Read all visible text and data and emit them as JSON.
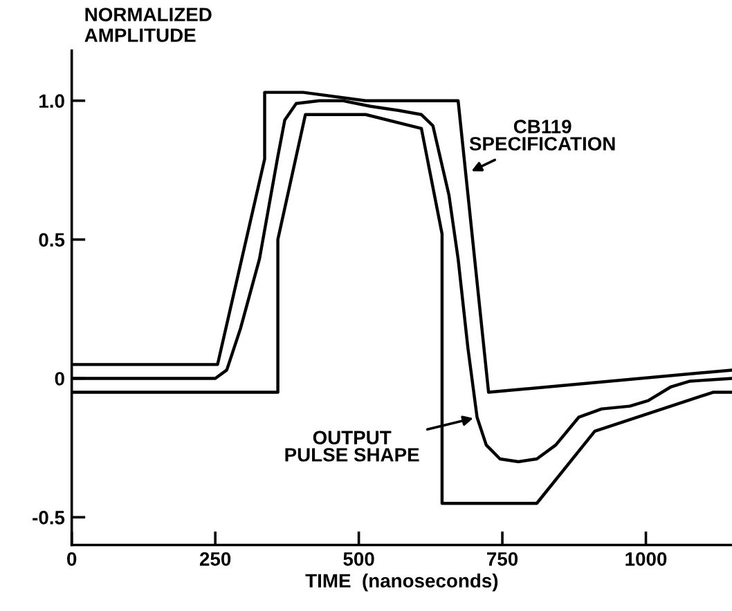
{
  "chart_data": {
    "type": "line",
    "ylabel": "NORMALIZED\nAMPLITUDE",
    "xlabel": "TIME  (nanoseconds)",
    "xlim": [
      0,
      1150
    ],
    "ylim": [
      -0.6,
      1.18
    ],
    "xticks": [
      0,
      250,
      500,
      750,
      1000
    ],
    "yticks": [
      {
        "value": 1.0,
        "label": "1.0"
      },
      0.5,
      0,
      -0.5
    ],
    "grid": false,
    "legend": false,
    "marker": "none",
    "line_style": "solid",
    "series": [
      {
        "color": "#000000",
        "x": [
          0,
          254,
          336,
          336,
          403,
          512,
          673,
          726,
          1150
        ],
        "values": [
          0.05,
          0.05,
          0.79,
          1.03,
          1.03,
          1.0,
          1.0,
          -0.05,
          0.03
        ]
      },
      {
        "color": "#000000",
        "x": [
          0,
          359,
          359,
          407,
          512,
          609,
          645,
          645,
          810,
          911,
          1117,
          1150
        ],
        "values": [
          -0.05,
          -0.05,
          0.5,
          0.95,
          0.95,
          0.9,
          0.52,
          -0.45,
          -0.45,
          -0.19,
          -0.05,
          -0.05
        ]
      },
      {
        "color": "#000000",
        "x": [
          0,
          250,
          270,
          294,
          327,
          359,
          371,
          391,
          431,
          472,
          520,
          569,
          609,
          629,
          657,
          673,
          690,
          706,
          722,
          746,
          778,
          810,
          843,
          883,
          923,
          972,
          1004,
          1044,
          1077,
          1150
        ],
        "values": [
          0,
          0,
          0.03,
          0.18,
          0.43,
          0.8,
          0.93,
          0.99,
          1.0,
          1.0,
          0.98,
          0.965,
          0.95,
          0.91,
          0.66,
          0.43,
          0.11,
          -0.14,
          -0.24,
          -0.29,
          -0.3,
          -0.29,
          -0.24,
          -0.14,
          -0.11,
          -0.1,
          -0.08,
          -0.03,
          -0.01,
          0
        ]
      }
    ],
    "annotations": [
      {
        "text": "CB119\nSPECIFICATION",
        "x": 690,
        "y": 0.74
      },
      {
        "text": "OUTPUT\nPULSE SHAPE",
        "x": 706,
        "y": -0.14
      }
    ]
  }
}
